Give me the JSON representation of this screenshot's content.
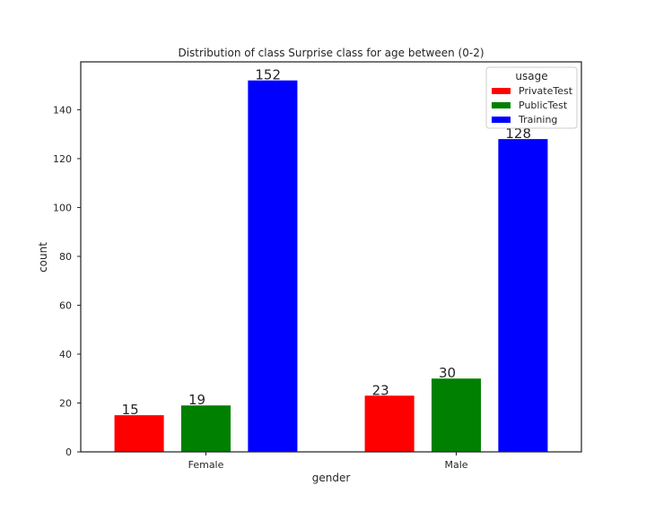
{
  "chart_data": {
    "type": "bar",
    "title": "Distribution of class Surprise class for age between (0-2)",
    "xlabel": "gender",
    "ylabel": "count",
    "categories": [
      "Female",
      "Male"
    ],
    "series": [
      {
        "name": "PrivateTest",
        "color": "#ff0000",
        "values": [
          15,
          23
        ]
      },
      {
        "name": "PublicTest",
        "color": "#008000",
        "values": [
          19,
          30
        ]
      },
      {
        "name": "Training",
        "color": "#0000ff",
        "values": [
          152,
          128
        ]
      }
    ],
    "data_labels": [
      [
        "15",
        "23"
      ],
      [
        "19",
        "30"
      ],
      [
        "152",
        "128"
      ]
    ],
    "ylim": [
      0,
      159.6
    ],
    "yticks": [
      0,
      20,
      40,
      60,
      80,
      100,
      120,
      140
    ],
    "grid": false,
    "legend": {
      "title": "usage",
      "position": "top-right"
    }
  }
}
